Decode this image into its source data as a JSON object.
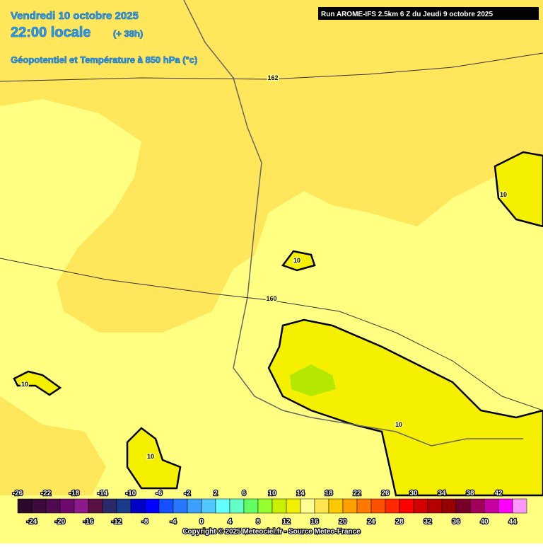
{
  "header": {
    "date": "Vendredi 10 octobre 2025",
    "time": "22:00 locale",
    "lead": "(+ 38h)",
    "field": "Géopotentiel et Température à 850 hPa (°c)",
    "run": "Run AROME-IFS 2.5km 6 Z du Jeudi 9 octobre 2025"
  },
  "map": {
    "geopotential_labels": [
      162,
      160
    ],
    "isotherm_labels": [
      10,
      10,
      10,
      10,
      10
    ]
  },
  "legend": {
    "values": [
      -26,
      -24,
      -22,
      -20,
      -18,
      -16,
      -14,
      -12,
      -10,
      -8,
      -6,
      -4,
      -2,
      0,
      2,
      4,
      6,
      8,
      10,
      12,
      14,
      16,
      18,
      20,
      22,
      24,
      26,
      28,
      30,
      32,
      34,
      36,
      38,
      40,
      42,
      44
    ],
    "colors": [
      "#2a0a2a",
      "#3c0a3c",
      "#500a50",
      "#6e0a6e",
      "#8c1a8c",
      "#5a1040",
      "#2a2a6a",
      "#1a3a8a",
      "#0000c8",
      "#0000ff",
      "#1450ff",
      "#2878ff",
      "#3ca0ff",
      "#50c8ff",
      "#64ffff",
      "#64ffc8",
      "#64ff64",
      "#96ff32",
      "#c8f000",
      "#f0f000",
      "#ffff96",
      "#ffe650",
      "#ffc800",
      "#ffa000",
      "#ff7800",
      "#ff5000",
      "#ff2800",
      "#ff0000",
      "#d20000",
      "#b40000",
      "#960000",
      "#780028",
      "#a0005a",
      "#c800a0",
      "#ff00ff",
      "#ff96ff"
    ]
  },
  "footer": {
    "copyright": "Copyright © 2025 Meteociel.fr - Source Meteo-France"
  }
}
